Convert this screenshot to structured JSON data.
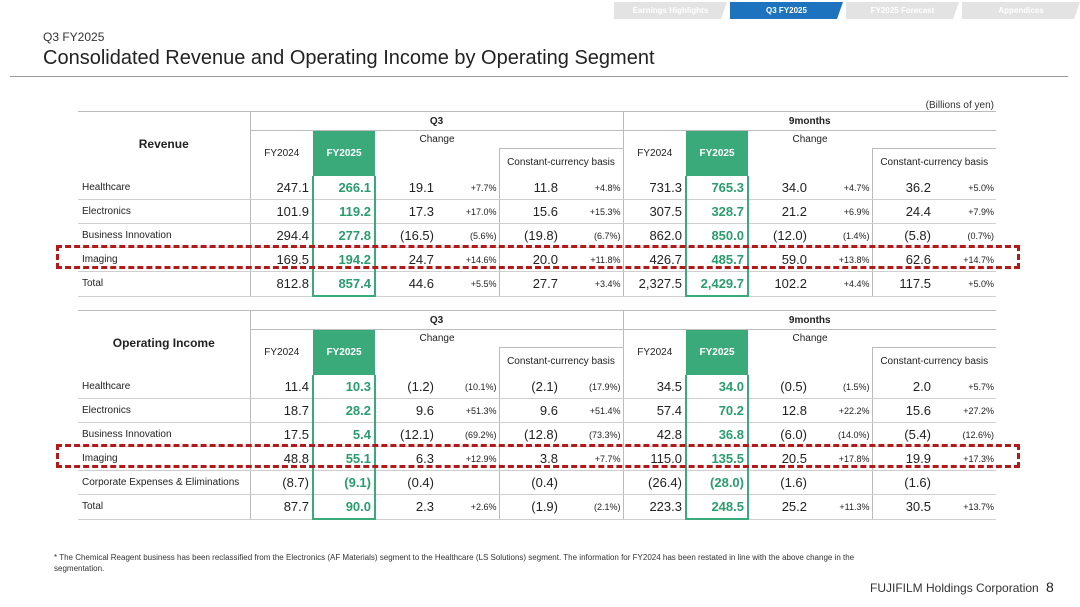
{
  "tabs": [
    {
      "label": "Earnings Highlights",
      "active": false
    },
    {
      "label": "Q3 FY2025",
      "active": true
    },
    {
      "label": "FY2025 Forecast",
      "active": false
    },
    {
      "label": "Appendices",
      "active": false
    }
  ],
  "header": {
    "subtitle": "Q3 FY2025",
    "title": "Consolidated Revenue and Operating Income by Operating Segment",
    "units": "(Billions of yen)"
  },
  "columns": {
    "q3": "Q3",
    "nine": "9months",
    "fy2024": "FY2024",
    "fy2025": "FY2025",
    "change": "Change",
    "cc": "Constant-currency basis"
  },
  "revenue": {
    "label": "Revenue",
    "rows": [
      {
        "star": "*",
        "name": "Healthcare",
        "v": [
          "247.1",
          "266.1",
          "19.1",
          "+7.7%",
          "11.8",
          "+4.8%",
          "731.3",
          "765.3",
          "34.0",
          "+4.7%",
          "36.2",
          "+5.0%"
        ]
      },
      {
        "star": "*",
        "name": "Electronics",
        "v": [
          "101.9",
          "119.2",
          "17.3",
          "+17.0%",
          "15.6",
          "+15.3%",
          "307.5",
          "328.7",
          "21.2",
          "+6.9%",
          "24.4",
          "+7.9%"
        ]
      },
      {
        "star": "",
        "name": "Business Innovation",
        "v": [
          "294.4",
          "277.8",
          "(16.5)",
          "(5.6%)",
          "(19.8)",
          "(6.7%)",
          "862.0",
          "850.0",
          "(12.0)",
          "(1.4%)",
          "(5.8)",
          "(0.7%)"
        ]
      },
      {
        "star": "",
        "name": "Imaging",
        "v": [
          "169.5",
          "194.2",
          "24.7",
          "+14.6%",
          "20.0",
          "+11.8%",
          "426.7",
          "485.7",
          "59.0",
          "+13.8%",
          "62.6",
          "+14.7%"
        ]
      },
      {
        "star": "",
        "name": "Total",
        "v": [
          "812.8",
          "857.4",
          "44.6",
          "+5.5%",
          "27.7",
          "+3.4%",
          "2,327.5",
          "2,429.7",
          "102.2",
          "+4.4%",
          "117.5",
          "+5.0%"
        ]
      }
    ]
  },
  "operating": {
    "label": "Operating Income",
    "rows": [
      {
        "star": "*",
        "name": "Healthcare",
        "v": [
          "11.4",
          "10.3",
          "(1.2)",
          "(10.1%)",
          "(2.1)",
          "(17.9%)",
          "34.5",
          "34.0",
          "(0.5)",
          "(1.5%)",
          "2.0",
          "+5.7%"
        ]
      },
      {
        "star": "*",
        "name": "Electronics",
        "v": [
          "18.7",
          "28.2",
          "9.6",
          "+51.3%",
          "9.6",
          "+51.4%",
          "57.4",
          "70.2",
          "12.8",
          "+22.2%",
          "15.6",
          "+27.2%"
        ]
      },
      {
        "star": "",
        "name": "Business Innovation",
        "v": [
          "17.5",
          "5.4",
          "(12.1)",
          "(69.2%)",
          "(12.8)",
          "(73.3%)",
          "42.8",
          "36.8",
          "(6.0)",
          "(14.0%)",
          "(5.4)",
          "(12.6%)"
        ]
      },
      {
        "star": "",
        "name": "Imaging",
        "v": [
          "48.8",
          "55.1",
          "6.3",
          "+12.9%",
          "3.8",
          "+7.7%",
          "115.0",
          "135.5",
          "20.5",
          "+17.8%",
          "19.9",
          "+17.3%"
        ]
      },
      {
        "star": "",
        "name": "Corporate Expenses & Eliminations",
        "v": [
          "(8.7)",
          "(9.1)",
          "(0.4)",
          "",
          "(0.4)",
          "",
          "(26.4)",
          "(28.0)",
          "(1.6)",
          "",
          "(1.6)",
          ""
        ]
      },
      {
        "star": "",
        "name": "Total",
        "v": [
          "87.7",
          "90.0",
          "2.3",
          "+2.6%",
          "(1.9)",
          "(2.1%)",
          "223.3",
          "248.5",
          "25.2",
          "+11.3%",
          "30.5",
          "+13.7%"
        ]
      }
    ]
  },
  "footnote": "* The Chemical Reagent business has been reclassified from the Electronics (AF Materials) segment to the Healthcare (LS Solutions) segment. The information for FY2024 has been restated in line with the above change in the segmentation.",
  "company": "FUJIFILM Holdings Corporation",
  "page_number": "8"
}
